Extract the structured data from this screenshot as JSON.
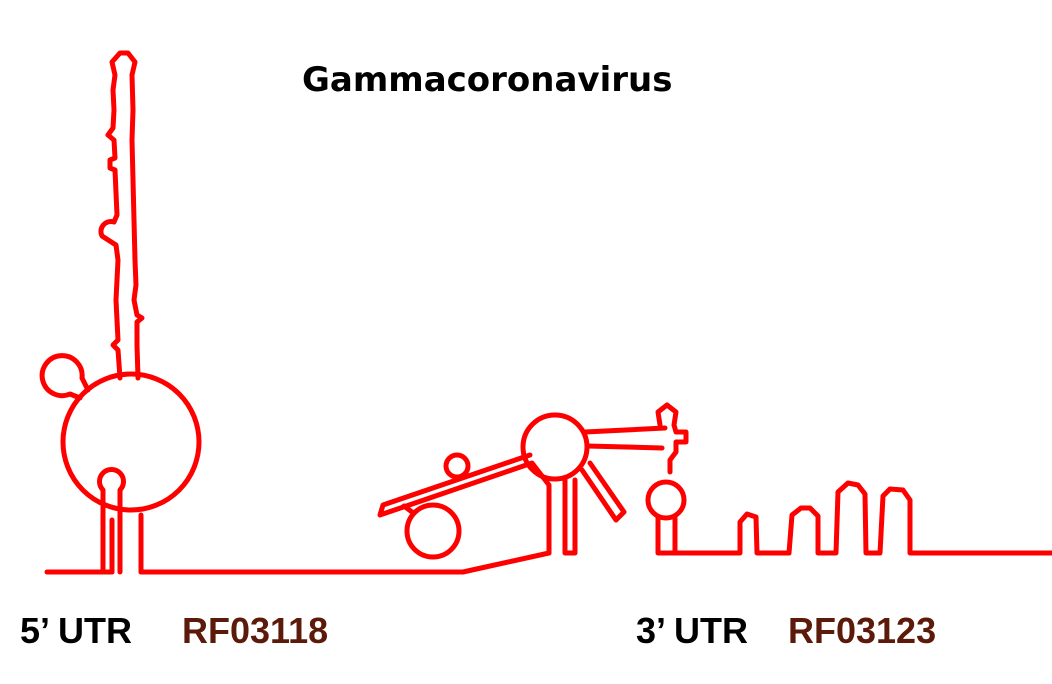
{
  "title": "Gammacoronavirus",
  "labels": {
    "utr5": "5’ UTR",
    "utr5_family": "RF03118",
    "utr3": "3’ UTR",
    "utr3_family": "RF03123"
  },
  "colors": {
    "structure": "#ff0000",
    "utr_label": "#000000",
    "family_label": "#5c1a0a"
  }
}
